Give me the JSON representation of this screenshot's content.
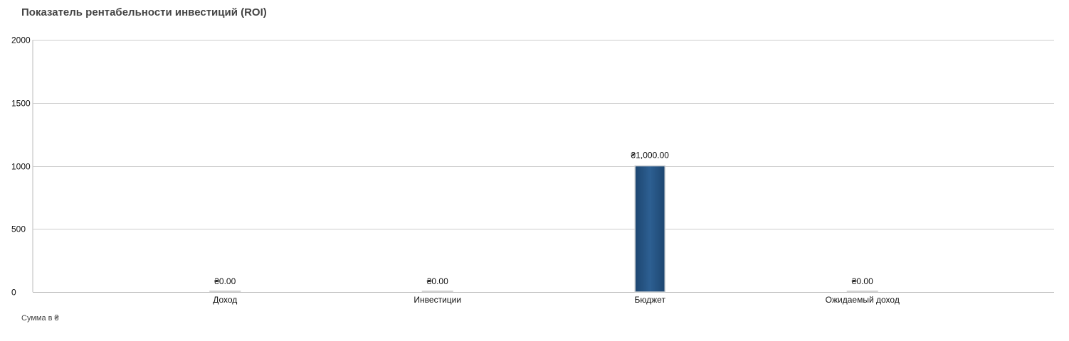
{
  "chart_data": {
    "type": "bar",
    "title": "Показатель рентабельности инвестиций (ROI)",
    "categories": [
      "Доход",
      "Инвестиции",
      "Бюджет",
      "Ожидаемый доход"
    ],
    "values": [
      0,
      0,
      1000,
      0
    ],
    "data_labels": [
      "₴0.00",
      "₴0.00",
      "₴1,000.00",
      "₴0.00"
    ],
    "y_ticks": [
      "0",
      "500",
      "1000",
      "1500",
      "2000"
    ],
    "ylim": [
      0,
      2000
    ],
    "grid": true,
    "footnote": "Сумма в ₴"
  },
  "colors": {
    "bar": "#2b5a8a",
    "grid": "#cccccc",
    "axis": "#bbbbbb"
  }
}
